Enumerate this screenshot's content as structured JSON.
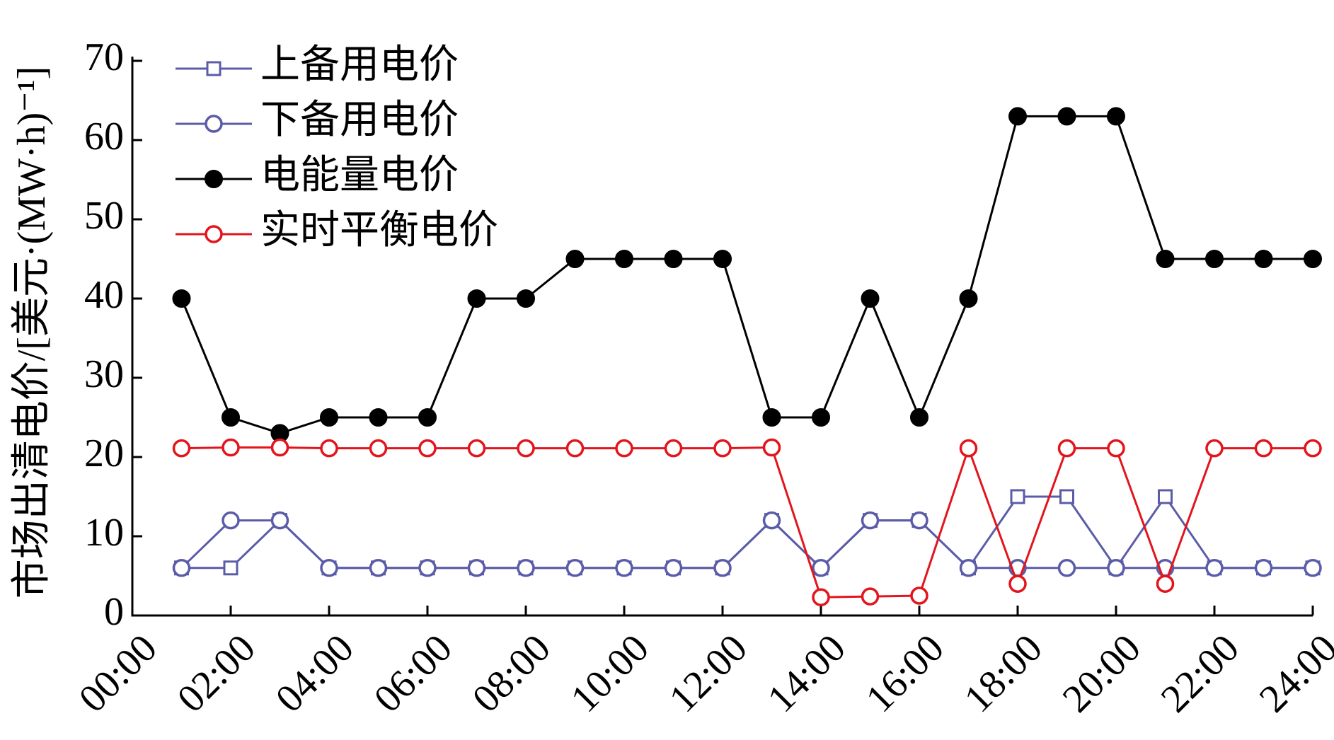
{
  "chart_data": {
    "type": "line",
    "y_label": "市场出清电价/[美元·(MW·h)⁻¹]",
    "x": [
      1,
      2,
      3,
      4,
      5,
      6,
      7,
      8,
      9,
      10,
      11,
      12,
      13,
      14,
      15,
      16,
      17,
      18,
      19,
      20,
      21,
      22,
      23,
      24
    ],
    "xlim": [
      0,
      24
    ],
    "xticks": [
      {
        "value": 0,
        "label": "00:00"
      },
      {
        "value": 2,
        "label": "02:00"
      },
      {
        "value": 4,
        "label": "04:00"
      },
      {
        "value": 6,
        "label": "06:00"
      },
      {
        "value": 8,
        "label": "08:00"
      },
      {
        "value": 10,
        "label": "10:00"
      },
      {
        "value": 12,
        "label": "12:00"
      },
      {
        "value": 14,
        "label": "14:00"
      },
      {
        "value": 16,
        "label": "16:00"
      },
      {
        "value": 18,
        "label": "18:00"
      },
      {
        "value": 20,
        "label": "20:00"
      },
      {
        "value": 22,
        "label": "22:00"
      },
      {
        "value": 24,
        "label": "24:00"
      }
    ],
    "ylim": [
      0,
      70
    ],
    "yticks": [
      0,
      10,
      20,
      30,
      40,
      50,
      60,
      70
    ],
    "legend": "upper-left",
    "series": [
      {
        "name": "上备用电价",
        "color": "#5b5ca8",
        "marker": "square",
        "values": [
          6,
          6,
          12,
          6,
          6,
          6,
          6,
          6,
          6,
          6,
          6,
          6,
          12,
          6,
          12,
          12,
          6,
          15,
          15,
          6,
          15,
          6,
          6,
          6
        ]
      },
      {
        "name": "下备用电价",
        "color": "#5b5ca8",
        "marker": "circle",
        "values": [
          6,
          12,
          12,
          6,
          6,
          6,
          6,
          6,
          6,
          6,
          6,
          6,
          12,
          6,
          12,
          12,
          6,
          6,
          6,
          6,
          6,
          6,
          6,
          6
        ]
      },
      {
        "name": "电能量电价",
        "color": "#000000",
        "marker": "filled-circle",
        "values": [
          40,
          25,
          23,
          25,
          25,
          25,
          40,
          40,
          45,
          45,
          45,
          45,
          25,
          25,
          40,
          25,
          40,
          63,
          63,
          63,
          45,
          45,
          45,
          45
        ]
      },
      {
        "name": "实时平衡电价",
        "color": "#e3141c",
        "marker": "circle",
        "values": [
          21.1,
          21.2,
          21.2,
          21.1,
          21.1,
          21.1,
          21.1,
          21.1,
          21.1,
          21.1,
          21.1,
          21.1,
          21.2,
          2.3,
          2.4,
          2.5,
          21.1,
          4,
          21.1,
          21.1,
          4,
          21.1,
          21.1,
          21.1
        ]
      }
    ]
  }
}
